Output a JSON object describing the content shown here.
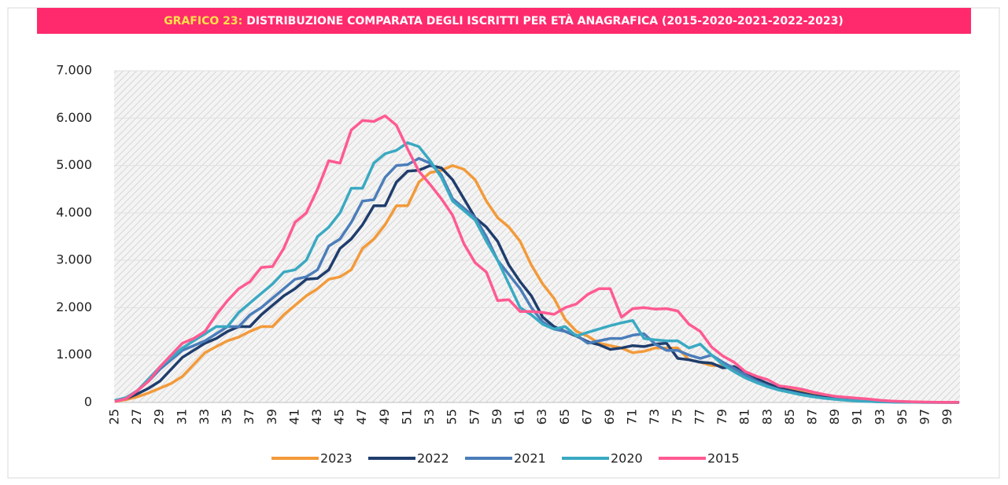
{
  "chart_data": {
    "type": "line",
    "title_label": "GRAFICO 23:",
    "title": "DISTRIBUZIONE COMPARATA DEGLI ISCRITTI PER ETÀ ANAGRAFICA (2015-2020-2021-2022-2023)",
    "categories": [
      "25",
      null,
      "27",
      null,
      "29",
      null,
      "31",
      null,
      "33",
      null,
      "35",
      null,
      "37",
      null,
      "39",
      null,
      "41",
      null,
      "43",
      null,
      "45",
      null,
      "47",
      null,
      "49",
      null,
      "51",
      null,
      "53",
      null,
      "55",
      null,
      "57",
      null,
      "59",
      null,
      "61",
      null,
      "63",
      null,
      "65",
      null,
      "67",
      null,
      "69",
      null,
      "71",
      null,
      "73",
      null,
      "75",
      null,
      "77",
      null,
      "79",
      null,
      "81",
      null,
      "83",
      null,
      "85",
      null,
      "87",
      null,
      "89",
      null,
      "91",
      null,
      "93",
      null,
      "95",
      null,
      "97",
      null,
      "99",
      null
    ],
    "ylim": [
      0,
      7000
    ],
    "yticks": [
      0,
      {
        "value": 1000,
        "label": "1.000"
      },
      {
        "value": 2000,
        "label": "2.000"
      },
      {
        "value": 3000,
        "label": "3.000"
      },
      {
        "value": 4000,
        "label": "4.000"
      },
      {
        "value": 5000,
        "label": "5.000"
      },
      {
        "value": 6000,
        "label": "6.000"
      },
      {
        "value": 7000,
        "label": "7.000"
      }
    ],
    "grid": true,
    "legend": "bottom",
    "series": [
      {
        "name": "2023",
        "color": "#f39a3a",
        "values": [
          20,
          60,
          120,
          200,
          300,
          400,
          550,
          800,
          1050,
          1180,
          1300,
          1380,
          1500,
          1600,
          1600,
          1850,
          2050,
          2250,
          2400,
          2600,
          2650,
          2800,
          3250,
          3450,
          3750,
          4150,
          4150,
          4650,
          4850,
          4900,
          5000,
          4920,
          4700,
          4250,
          3900,
          3700,
          3400,
          2900,
          2500,
          2200,
          1750,
          1500,
          1400,
          1250,
          1200,
          1150,
          1050,
          1080,
          1150,
          1150,
          1150,
          900,
          850,
          780,
          780,
          680,
          550,
          450,
          370,
          330,
          300,
          250,
          200,
          150,
          120,
          100,
          80,
          60,
          40,
          25,
          15,
          10,
          5,
          3,
          2,
          1
        ]
      },
      {
        "name": "2022",
        "color": "#1f3d6d",
        "values": [
          30,
          80,
          180,
          300,
          450,
          700,
          950,
          1100,
          1250,
          1350,
          1500,
          1600,
          1600,
          1850,
          2050,
          2250,
          2400,
          2600,
          2620,
          2800,
          3250,
          3450,
          3750,
          4150,
          4150,
          4650,
          4880,
          4900,
          5000,
          4950,
          4700,
          4300,
          3900,
          3700,
          3400,
          2900,
          2550,
          2250,
          1800,
          1600,
          1500,
          1400,
          1280,
          1220,
          1120,
          1150,
          1200,
          1180,
          1230,
          1250,
          930,
          900,
          850,
          830,
          730,
          760,
          620,
          500,
          400,
          300,
          250,
          200,
          150,
          110,
          80,
          60,
          40,
          30,
          20,
          12,
          8,
          5,
          3,
          2,
          1,
          1
        ]
      },
      {
        "name": "2021",
        "color": "#4b7dba",
        "values": [
          40,
          100,
          250,
          450,
          700,
          900,
          1100,
          1200,
          1300,
          1450,
          1600,
          1600,
          1850,
          2000,
          2200,
          2400,
          2600,
          2650,
          2800,
          3300,
          3450,
          3800,
          4250,
          4280,
          4750,
          5000,
          5020,
          5150,
          5050,
          4800,
          4300,
          4100,
          3900,
          3500,
          3000,
          2700,
          2400,
          2000,
          1700,
          1550,
          1500,
          1420,
          1250,
          1300,
          1350,
          1350,
          1420,
          1450,
          1230,
          1100,
          1100,
          1000,
          930,
          1000,
          850,
          720,
          580,
          450,
          350,
          270,
          220,
          170,
          130,
          90,
          70,
          50,
          35,
          25,
          15,
          10,
          6,
          4,
          2,
          1,
          1,
          0
        ]
      },
      {
        "name": "2020",
        "color": "#3aa9c2",
        "values": [
          40,
          100,
          250,
          500,
          750,
          950,
          1150,
          1300,
          1450,
          1600,
          1600,
          1900,
          2100,
          2300,
          2500,
          2750,
          2800,
          3000,
          3500,
          3700,
          4000,
          4520,
          4520,
          5050,
          5250,
          5320,
          5480,
          5400,
          5100,
          4750,
          4250,
          4050,
          3850,
          3400,
          3000,
          2500,
          2000,
          1850,
          1650,
          1550,
          1600,
          1400,
          1480,
          1550,
          1620,
          1680,
          1730,
          1350,
          1320,
          1300,
          1300,
          1150,
          1230,
          1000,
          800,
          650,
          520,
          420,
          330,
          260,
          210,
          160,
          120,
          90,
          65,
          45,
          30,
          20,
          12,
          8,
          5,
          3,
          2,
          1,
          1,
          0
        ]
      },
      {
        "name": "2015",
        "color": "#ff5a92",
        "values": [
          20,
          80,
          250,
          450,
          750,
          1000,
          1250,
          1350,
          1500,
          1850,
          2150,
          2400,
          2550,
          2850,
          2870,
          3250,
          3800,
          4000,
          4500,
          5100,
          5050,
          5750,
          5950,
          5930,
          6050,
          5850,
          5350,
          4880,
          4600,
          4300,
          3950,
          3350,
          2950,
          2750,
          2150,
          2170,
          1920,
          1920,
          1900,
          1860,
          2000,
          2080,
          2280,
          2400,
          2400,
          1800,
          1980,
          2000,
          1970,
          1980,
          1930,
          1650,
          1500,
          1170,
          980,
          850,
          650,
          550,
          480,
          350,
          320,
          280,
          220,
          170,
          130,
          110,
          90,
          70,
          45,
          30,
          20,
          12,
          8,
          5,
          3,
          2
        ]
      }
    ]
  }
}
